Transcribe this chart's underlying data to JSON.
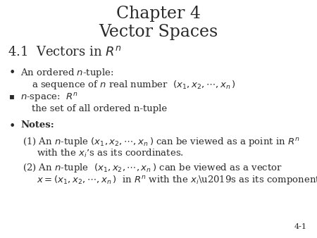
{
  "bg_color": "#ffffff",
  "title_line1": "Chapter 4",
  "title_line2": "Vector Spaces",
  "title_fontsize": 17,
  "title_color": "#2a2a2a",
  "section_title_plain": "4.1  Vectors in ",
  "section_title_math": "$R^{n}$",
  "section_fontsize": 13,
  "section_color": "#2a2a2a",
  "body_fontsize": 9.5,
  "body_color": "#2a2a2a",
  "page_num": "4-1",
  "page_num_fontsize": 8
}
